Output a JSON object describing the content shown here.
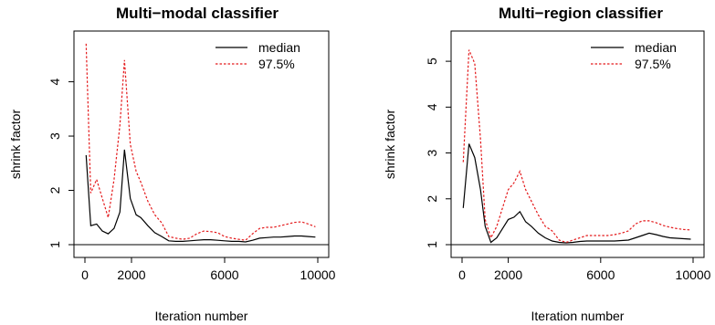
{
  "chart_data": [
    {
      "type": "line",
      "title": "Multi−modal classifier",
      "xlabel": "Iteration number",
      "ylabel": "shrink factor",
      "xlim": [
        0,
        10000
      ],
      "ylim": [
        1,
        4.8
      ],
      "xticks": [
        0,
        2000,
        6000,
        10000
      ],
      "xtick_labels": [
        "0",
        "2000",
        "6000",
        "10000"
      ],
      "yticks": [
        1,
        2,
        3,
        4
      ],
      "ytick_labels": [
        "1",
        "2",
        "3",
        "4"
      ],
      "reference_line": 1,
      "legend": {
        "placement": "top-right"
      },
      "series": [
        {
          "name": "median",
          "style": "solid",
          "color": "#000000",
          "x": [
            50,
            250,
            500,
            750,
            1000,
            1250,
            1500,
            1700,
            1950,
            2200,
            2400,
            2700,
            3000,
            3300,
            3600,
            3900,
            4200,
            4500,
            4800,
            5100,
            5400,
            5700,
            6000,
            6300,
            6600,
            6900,
            7200,
            7500,
            7800,
            8100,
            8400,
            8700,
            9000,
            9300,
            9600,
            9900
          ],
          "values": [
            2.65,
            1.35,
            1.38,
            1.25,
            1.2,
            1.3,
            1.6,
            2.75,
            1.85,
            1.55,
            1.5,
            1.35,
            1.22,
            1.15,
            1.07,
            1.06,
            1.06,
            1.07,
            1.08,
            1.09,
            1.09,
            1.08,
            1.07,
            1.06,
            1.06,
            1.05,
            1.08,
            1.12,
            1.13,
            1.14,
            1.14,
            1.15,
            1.16,
            1.16,
            1.15,
            1.14
          ]
        },
        {
          "name": "97.5%",
          "style": "dotted",
          "color": "#e41a1c",
          "x": [
            50,
            250,
            500,
            750,
            1000,
            1250,
            1500,
            1700,
            1950,
            2200,
            2400,
            2700,
            3000,
            3300,
            3600,
            3900,
            4200,
            4500,
            4800,
            5100,
            5400,
            5700,
            6000,
            6300,
            6600,
            6900,
            7200,
            7500,
            7800,
            8100,
            8400,
            8700,
            9000,
            9300,
            9600,
            9900
          ],
          "values": [
            4.7,
            1.95,
            2.2,
            1.85,
            1.5,
            2.2,
            3.2,
            4.4,
            2.85,
            2.35,
            2.15,
            1.8,
            1.55,
            1.4,
            1.15,
            1.12,
            1.1,
            1.12,
            1.2,
            1.25,
            1.24,
            1.22,
            1.15,
            1.12,
            1.1,
            1.08,
            1.2,
            1.3,
            1.32,
            1.32,
            1.35,
            1.38,
            1.41,
            1.42,
            1.38,
            1.33
          ]
        }
      ]
    },
    {
      "type": "line",
      "title": "Multi−region classifier",
      "xlabel": "Iteration number",
      "ylabel": "shrink factor",
      "xlim": [
        0,
        10000
      ],
      "ylim": [
        1,
        5.5
      ],
      "xticks": [
        0,
        2000,
        6000,
        10000
      ],
      "xtick_labels": [
        "0",
        "2000",
        "6000",
        "10000"
      ],
      "yticks": [
        1,
        2,
        3,
        4,
        5
      ],
      "ytick_labels": [
        "1",
        "2",
        "3",
        "4",
        "5"
      ],
      "reference_line": 1,
      "legend": {
        "placement": "top-right"
      },
      "series": [
        {
          "name": "median",
          "style": "solid",
          "color": "#000000",
          "x": [
            50,
            300,
            550,
            800,
            1000,
            1250,
            1500,
            1750,
            2000,
            2250,
            2500,
            2750,
            3000,
            3300,
            3600,
            3900,
            4200,
            4500,
            4800,
            5100,
            5400,
            5700,
            6000,
            6300,
            6600,
            6900,
            7200,
            7500,
            7800,
            8100,
            8400,
            8700,
            9000,
            9300,
            9600,
            9900
          ],
          "values": [
            1.8,
            3.2,
            2.9,
            2.2,
            1.4,
            1.05,
            1.15,
            1.35,
            1.55,
            1.6,
            1.72,
            1.5,
            1.4,
            1.25,
            1.15,
            1.08,
            1.05,
            1.04,
            1.05,
            1.07,
            1.08,
            1.08,
            1.08,
            1.08,
            1.08,
            1.09,
            1.1,
            1.15,
            1.2,
            1.25,
            1.22,
            1.18,
            1.15,
            1.14,
            1.13,
            1.12
          ]
        },
        {
          "name": "97.5%",
          "style": "dotted",
          "color": "#e41a1c",
          "x": [
            50,
            300,
            550,
            800,
            1000,
            1250,
            1500,
            1750,
            2000,
            2250,
            2500,
            2750,
            3000,
            3300,
            3600,
            3900,
            4200,
            4500,
            4800,
            5100,
            5400,
            5700,
            6000,
            6300,
            6600,
            6900,
            7200,
            7500,
            7800,
            8100,
            8400,
            8700,
            9000,
            9300,
            9600,
            9900
          ],
          "values": [
            2.8,
            5.25,
            4.95,
            3.3,
            1.55,
            1.15,
            1.4,
            1.8,
            2.2,
            2.35,
            2.6,
            2.2,
            1.95,
            1.65,
            1.4,
            1.3,
            1.1,
            1.05,
            1.1,
            1.15,
            1.2,
            1.2,
            1.2,
            1.2,
            1.22,
            1.25,
            1.3,
            1.45,
            1.52,
            1.52,
            1.48,
            1.42,
            1.38,
            1.35,
            1.33,
            1.32
          ]
        }
      ]
    }
  ]
}
